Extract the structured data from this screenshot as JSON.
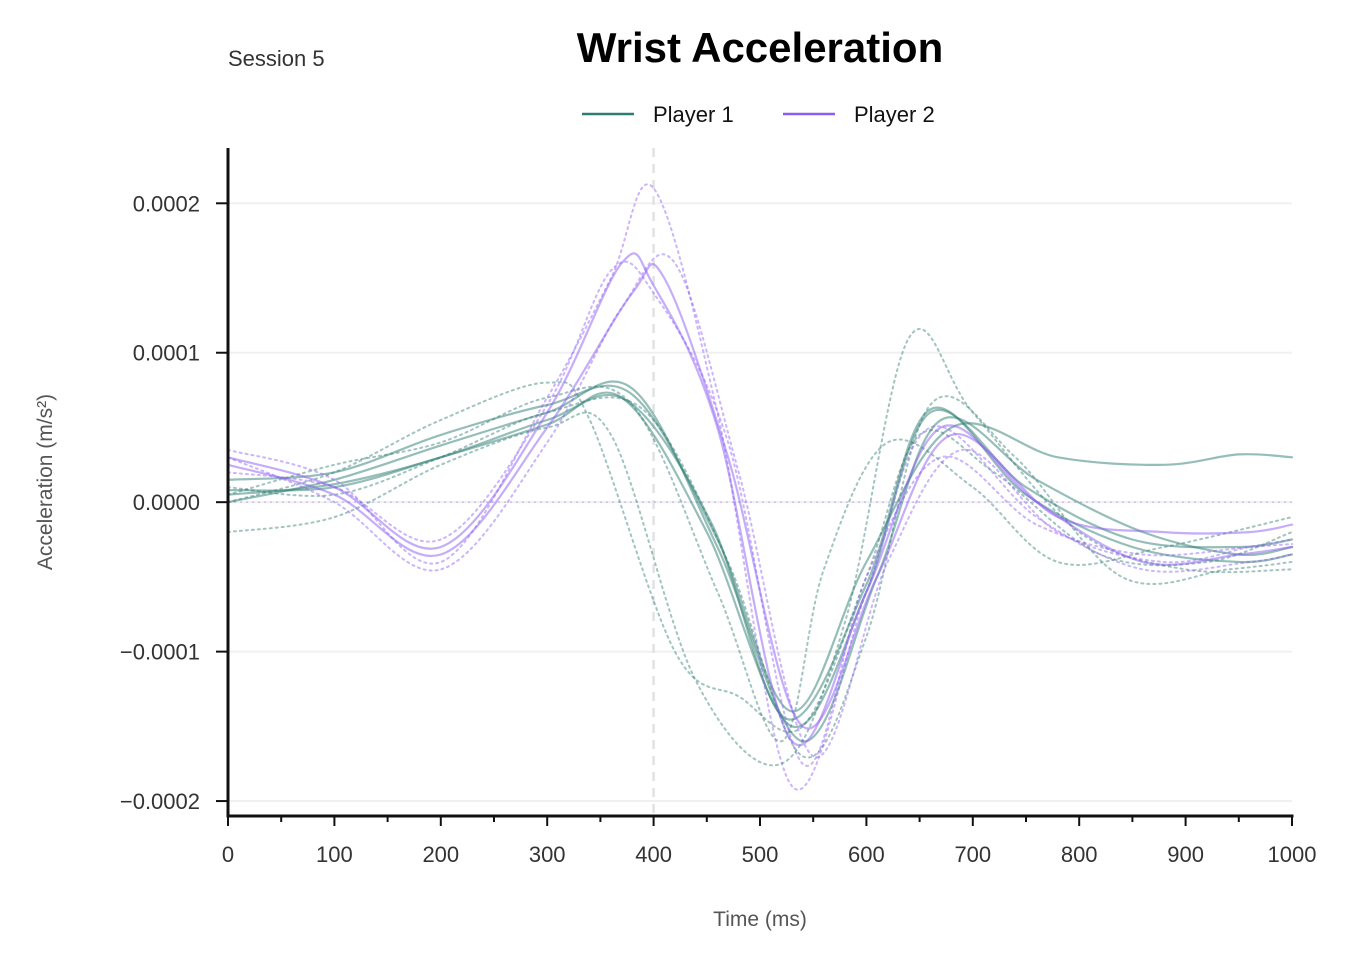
{
  "chart_data": {
    "type": "line",
    "title": "Wrist Acceleration",
    "subtitle": "Session 5",
    "xlabel": "Time (ms)",
    "ylabel": "Acceleration (m/s²)",
    "xlim": [
      0,
      1000
    ],
    "ylim": [
      -0.00021,
      0.000237
    ],
    "xticks": [
      0,
      100,
      200,
      300,
      400,
      500,
      600,
      700,
      800,
      900,
      1000
    ],
    "xtick_labels": [
      "0",
      "100",
      "200",
      "300",
      "400",
      "500",
      "600",
      "700",
      "800",
      "900",
      "1000"
    ],
    "yticks": [
      0.0002,
      0.0001,
      0.0,
      -0.0001,
      -0.0002
    ],
    "ytick_labels": [
      "0.0002",
      "0.0001",
      "0.0000",
      "−0.0001",
      "−0.0002"
    ],
    "grid": "horizontal",
    "reference_line_x": 400,
    "legend": {
      "placement": "top-center",
      "entries": [
        "Player 1",
        "Player 2"
      ]
    },
    "colors": {
      "Player 1": "#2e7d73",
      "Player 2": "#8b5cf6"
    },
    "series": [
      {
        "name": "Player 1",
        "style": "solid",
        "x": [
          0,
          100,
          200,
          300,
          370,
          450,
          530,
          600,
          660,
          750,
          850,
          950,
          1000
        ],
        "y": [
          8e-06,
          1e-05,
          3e-05,
          5.2e-05,
          7e-05,
          -2e-05,
          -0.00015,
          -6e-05,
          6e-05,
          1e-05,
          -2.5e-05,
          -3e-05,
          -2.5e-05
        ]
      },
      {
        "name": "Player 1",
        "style": "solid",
        "x": [
          0,
          100,
          200,
          300,
          380,
          460,
          540,
          610,
          670,
          760,
          860,
          950,
          1000
        ],
        "y": [
          0.0,
          1.5e-05,
          3.8e-05,
          6e-05,
          7.6e-05,
          -3e-05,
          -0.00016,
          -5e-05,
          5.5e-05,
          1.5e-05,
          -2e-05,
          -3.5e-05,
          -3e-05
        ]
      },
      {
        "name": "Player 1",
        "style": "solid",
        "x": [
          0,
          100,
          200,
          300,
          380,
          460,
          530,
          600,
          680,
          780,
          880,
          950,
          1000
        ],
        "y": [
          1.5e-05,
          2e-05,
          4.5e-05,
          6.5e-05,
          7.2e-05,
          -2.5e-05,
          -0.00014,
          -4e-05,
          5e-05,
          3e-05,
          2.5e-05,
          3.2e-05,
          3e-05
        ]
      },
      {
        "name": "Player 1",
        "style": "solid",
        "x": [
          0,
          100,
          200,
          300,
          375,
          455,
          525,
          600,
          660,
          750,
          850,
          950,
          1000
        ],
        "y": [
          5e-06,
          1.2e-05,
          3e-05,
          5.5e-05,
          6.8e-05,
          -1.5e-05,
          -0.000145,
          -5.5e-05,
          6.2e-05,
          5e-06,
          -3e-05,
          -4e-05,
          -3.5e-05
        ]
      },
      {
        "name": "Player 1",
        "style": "dotted",
        "x": [
          0,
          100,
          200,
          300,
          340,
          420,
          480,
          540,
          600,
          650,
          720,
          820,
          920,
          1000
        ],
        "y": [
          0.0,
          2e-05,
          5.5e-05,
          8e-05,
          5.5e-05,
          -0.0001,
          -0.00013,
          -0.00015,
          -5e-05,
          4.5e-05,
          2e-05,
          -3.5e-05,
          -4e-05,
          -2e-05
        ]
      },
      {
        "name": "Player 1",
        "style": "dotted",
        "x": [
          0,
          100,
          200,
          300,
          360,
          440,
          520,
          580,
          640,
          700,
          800,
          900,
          1000
        ],
        "y": [
          -2e-05,
          -1e-05,
          2.5e-05,
          5e-05,
          4.5e-05,
          -0.00012,
          -0.000175,
          -8e-05,
          0.00011,
          6e-05,
          -2e-05,
          -4.5e-05,
          -4.5e-05
        ]
      },
      {
        "name": "Player 1",
        "style": "dotted",
        "x": [
          0,
          100,
          200,
          300,
          380,
          460,
          520,
          560,
          620,
          700,
          780,
          880,
          1000
        ],
        "y": [
          5e-06,
          2.5e-05,
          4e-05,
          7e-05,
          6.5e-05,
          -6e-05,
          -0.00016,
          -4.5e-05,
          4e-05,
          1e-05,
          -4e-05,
          -3e-05,
          -1e-05
        ]
      },
      {
        "name": "Player 1",
        "style": "dotted",
        "x": [
          0,
          100,
          200,
          300,
          390,
          470,
          540,
          600,
          660,
          740,
          840,
          940,
          1000
        ],
        "y": [
          1e-05,
          5e-06,
          3e-05,
          6e-05,
          6.2e-05,
          -4e-05,
          -0.00017,
          -9e-05,
          6.5e-05,
          3e-05,
          -5e-05,
          -4.5e-05,
          -4e-05
        ]
      },
      {
        "name": "Player 2",
        "style": "solid",
        "x": [
          0,
          100,
          200,
          300,
          370,
          400,
          460,
          530,
          600,
          670,
          760,
          860,
          950,
          1000
        ],
        "y": [
          3e-05,
          1e-05,
          -3e-05,
          6e-05,
          0.00016,
          0.000145,
          5e-05,
          -0.00016,
          -6e-05,
          5e-05,
          0.0,
          -4e-05,
          -3.5e-05,
          -3e-05
        ]
      },
      {
        "name": "Player 2",
        "style": "solid",
        "x": [
          0,
          100,
          200,
          300,
          380,
          410,
          470,
          540,
          610,
          680,
          780,
          880,
          960,
          1000
        ],
        "y": [
          2.5e-05,
          5e-06,
          -3.5e-05,
          5e-05,
          0.00014,
          0.00015,
          3e-05,
          -0.00015,
          -5e-05,
          4.5e-05,
          -1e-05,
          -2e-05,
          -2e-05,
          -1.5e-05
        ]
      },
      {
        "name": "Player 2",
        "style": "dotted",
        "x": [
          0,
          100,
          200,
          300,
          360,
          400,
          460,
          530,
          600,
          660,
          760,
          860,
          960,
          1000
        ],
        "y": [
          3.5e-05,
          1.5e-05,
          -4e-05,
          7e-05,
          0.00015,
          0.00021,
          6e-05,
          -0.00019,
          -6e-05,
          5e-05,
          -1e-05,
          -4.5e-05,
          -4e-05,
          -3.5e-05
        ]
      },
      {
        "name": "Player 2",
        "style": "dotted",
        "x": [
          0,
          100,
          200,
          300,
          370,
          420,
          480,
          550,
          620,
          690,
          780,
          880,
          960,
          1000
        ],
        "y": [
          3e-05,
          0.0,
          -4.5e-05,
          4e-05,
          0.00013,
          0.00016,
          2e-05,
          -0.00017,
          -4e-05,
          3.5e-05,
          -2e-05,
          -4e-05,
          -3e-05,
          -2.5e-05
        ]
      },
      {
        "name": "Player 2",
        "style": "dotted",
        "x": [
          0,
          100,
          200,
          300,
          360,
          400,
          470,
          540,
          600,
          670,
          760,
          860,
          960,
          1000
        ],
        "y": [
          2e-05,
          1e-05,
          -2.5e-05,
          6.5e-05,
          0.000155,
          0.00014,
          4e-05,
          -0.000175,
          -5e-05,
          3e-05,
          -1.5e-05,
          -3.5e-05,
          -3e-05,
          -2.8e-05
        ]
      }
    ]
  }
}
